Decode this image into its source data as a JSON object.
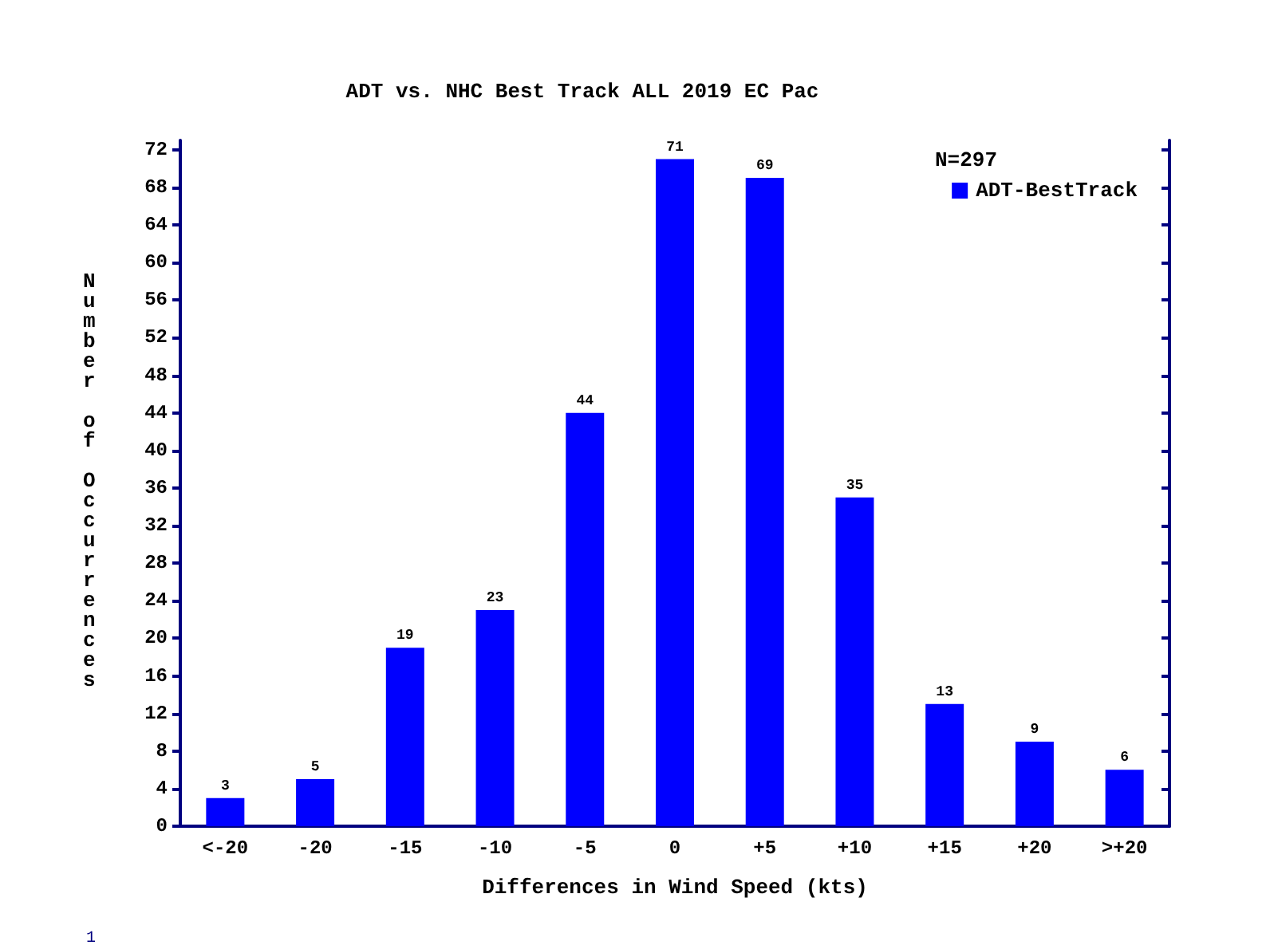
{
  "chart_data": {
    "type": "bar",
    "title": "ADT vs. NHC Best Track ALL 2019 EC Pac",
    "xlabel": "Differences in Wind Speed (kts)",
    "ylabel": "Number of Occurrences",
    "categories": [
      "<-20",
      "-20",
      "-15",
      "-10",
      "-5",
      "0",
      "+5",
      "+10",
      "+15",
      "+20",
      ">+20"
    ],
    "series": [
      {
        "name": "ADT-BestTrack",
        "color": "#0000ff",
        "values": [
          3,
          5,
          19,
          23,
          44,
          71,
          69,
          35,
          13,
          9,
          6
        ]
      }
    ],
    "ylim": [
      0,
      73
    ],
    "yticks": [
      0,
      4,
      8,
      12,
      16,
      20,
      24,
      28,
      32,
      36,
      40,
      44,
      48,
      52,
      56,
      60,
      64,
      68,
      72
    ],
    "data_labels": true,
    "legend": "top right",
    "grid": false,
    "annotations": [
      "N=297",
      "1"
    ]
  }
}
